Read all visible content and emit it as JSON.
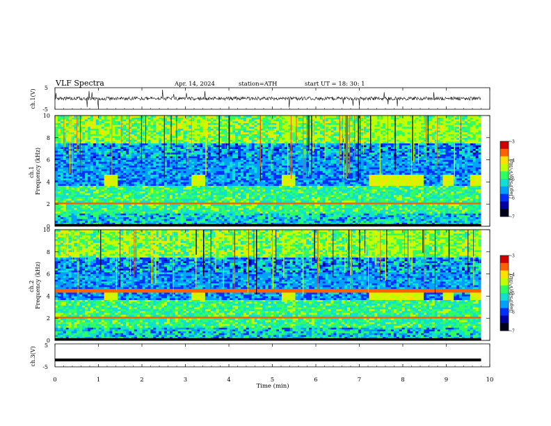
{
  "header": {
    "title": "VLF  Spectra",
    "date": "Apr. 14, 2024",
    "station": "station=ATH",
    "start": "start  UT  =    18: 30: 1"
  },
  "chart_data": [
    {
      "type": "line",
      "panel": "ch1-waveform",
      "ylabel": "ch.1(V)",
      "ylim": [
        -5,
        5
      ],
      "yticks": [
        "5",
        "-5"
      ],
      "baseline": 0,
      "approx_amplitude": 0.8
    },
    {
      "type": "heatmap",
      "panel": "ch1-spectrogram",
      "ylabel": "ch.1\nFrequency  (kHz)",
      "ylim": [
        0,
        10
      ],
      "yticks": [
        "0",
        "2",
        "4",
        "6",
        "8",
        "10"
      ],
      "colorbar": {
        "label": "log(PSD)(V²/Hz)",
        "range": [
          -7,
          -3
        ],
        "ticks": [
          "-3",
          "-4",
          "-5",
          "-6",
          "-7"
        ]
      },
      "bursts_min": [
        [
          1.13,
          1.45
        ],
        [
          3.12,
          3.45
        ],
        [
          5.2,
          5.55
        ],
        [
          7.25,
          8.5
        ],
        [
          8.9,
          9.2
        ],
        [
          9.55,
          9.8
        ]
      ],
      "burst_band_khz": [
        3.7,
        4.6
      ]
    },
    {
      "type": "heatmap",
      "panel": "ch2-spectrogram",
      "ylabel": "ch.2\nFrequency  (kHz)",
      "ylim": [
        0,
        10
      ],
      "yticks": [
        "0",
        "2",
        "4",
        "6",
        "8",
        "10"
      ],
      "colorbar": {
        "label": "log(PSD)(V²/Hz)",
        "range": [
          -7,
          -3
        ],
        "ticks": [
          "-3",
          "-4",
          "-5",
          "-6",
          "-7"
        ]
      },
      "bursts_min": [
        [
          1.13,
          1.45
        ],
        [
          3.12,
          3.45
        ],
        [
          5.2,
          5.55
        ],
        [
          7.25,
          8.5
        ],
        [
          8.9,
          9.2
        ],
        [
          9.55,
          9.8
        ]
      ],
      "burst_band_khz": [
        3.7,
        4.6
      ]
    },
    {
      "type": "line",
      "panel": "ch3-waveform",
      "ylabel": "ch.3(V)",
      "ylim": [
        -5,
        5
      ],
      "yticks": [
        "5",
        "-5"
      ],
      "value": -2
    }
  ],
  "xaxis": {
    "label": "Time  (min)",
    "range": [
      0,
      10
    ],
    "ticks": [
      "0",
      "1",
      "2",
      "3",
      "4",
      "5",
      "6",
      "7",
      "8",
      "9",
      "10"
    ],
    "data_end_min": 9.8
  },
  "colors": {
    "colormap": [
      "#00001a",
      "#0000a0",
      "#0030ff",
      "#00a0ff",
      "#10e0d0",
      "#30ff60",
      "#c0ff00",
      "#ffe000",
      "#ff6000",
      "#d00000",
      "#ffffff"
    ]
  }
}
